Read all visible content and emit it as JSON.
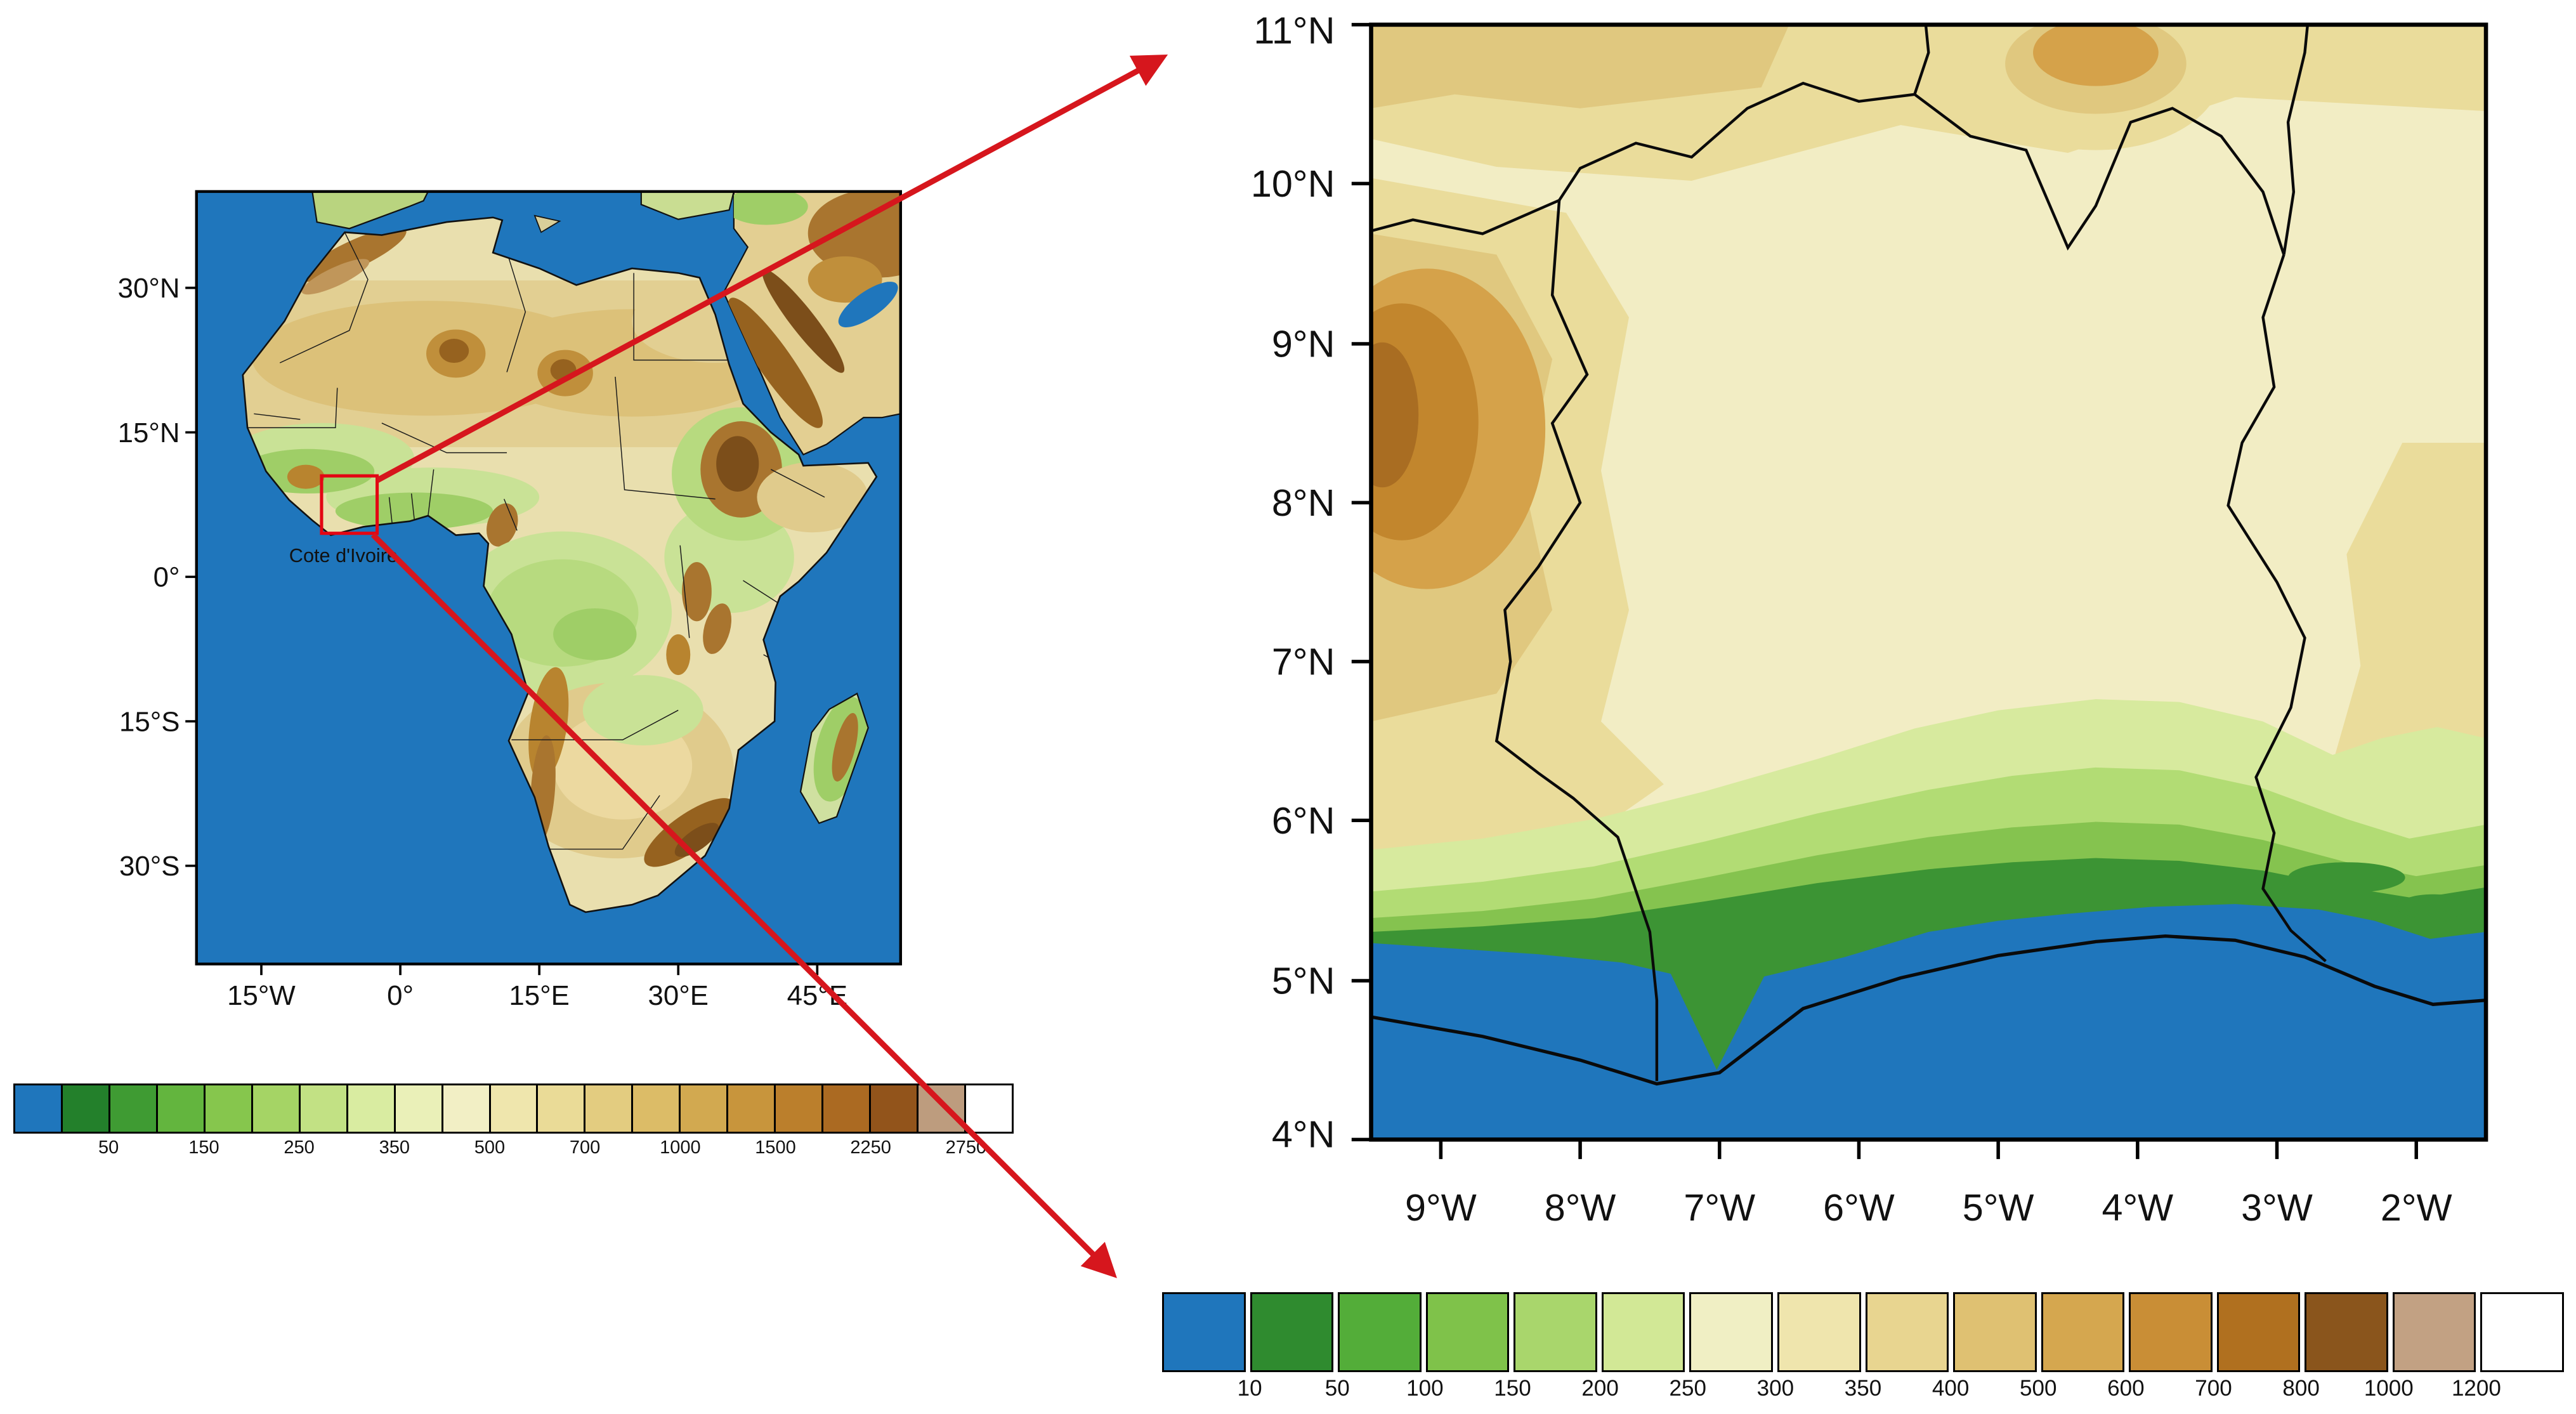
{
  "colors": {
    "ocean": "#1f76bc",
    "arrow-red": "#d6161d",
    "box-red": "#e30613"
  },
  "africa_map": {
    "region_label": "Cote d'Ivoire",
    "lat_ticks": [
      "30°N",
      "15°N",
      "0°",
      "15°S",
      "30°S"
    ],
    "lon_ticks": [
      "15°W",
      "0°",
      "15°E",
      "30°E",
      "45°E"
    ],
    "colorbar_values": [
      "50",
      "150",
      "250",
      "350",
      "500",
      "700",
      "1000",
      "1500",
      "2250",
      "2750"
    ],
    "colorbar_colors": [
      "#1f76bc",
      "#23802b",
      "#3f9b33",
      "#63b53e",
      "#86c64d",
      "#a5d465",
      "#c2e184",
      "#d9eca1",
      "#eaf0b8",
      "#f2efc5",
      "#efe6ad",
      "#eadb97",
      "#e3cc80",
      "#dcbc67",
      "#d2a950",
      "#c8953c",
      "#bb7f2c",
      "#ab6a22",
      "#92541b",
      "#bd9c7e",
      "#ffffff"
    ]
  },
  "zoom_map": {
    "lat_ticks": [
      "11°N",
      "10°N",
      "9°N",
      "8°N",
      "7°N",
      "6°N",
      "5°N",
      "4°N"
    ],
    "lon_ticks": [
      "9°W",
      "8°W",
      "7°W",
      "6°W",
      "5°W",
      "4°W",
      "3°W",
      "2°W"
    ],
    "colorbar_values": [
      "10",
      "50",
      "100",
      "150",
      "200",
      "250",
      "300",
      "350",
      "400",
      "500",
      "600",
      "700",
      "800",
      "1000",
      "1200"
    ],
    "colorbar_colors": [
      "#1f76bc",
      "#2f8b2f",
      "#53ad39",
      "#7fc24a",
      "#a9d66c",
      "#d2e896",
      "#f0efc4",
      "#efe5ad",
      "#e8d590",
      "#dfc172",
      "#d5a74f",
      "#c98e36",
      "#b0701f",
      "#8a551c",
      "#c2a183",
      "#ffffff"
    ]
  }
}
